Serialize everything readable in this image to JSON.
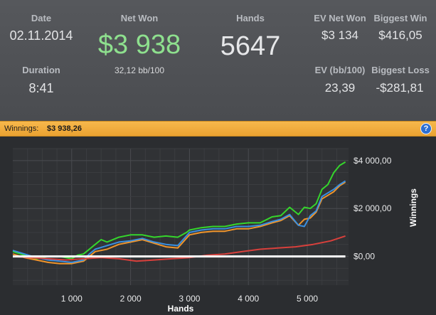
{
  "stats": {
    "date_label": "Date",
    "date_value": "02.11.2014",
    "net_won_label": "Net Won",
    "net_won_value": "$3 938",
    "net_won_sub": "32,12 bb/100",
    "hands_label": "Hands",
    "hands_value": "5647",
    "ev_net_won_label": "EV Net Won",
    "ev_net_won_value": "$3 134",
    "biggest_win_label": "Biggest Win",
    "biggest_win_value": "$416,05",
    "duration_label": "Duration",
    "duration_value": "8:41",
    "ev_bb_label": "EV (bb/100)",
    "ev_bb_value": "23,39",
    "biggest_loss_label": "Biggest Loss",
    "biggest_loss_value": "-$281,81"
  },
  "banner": {
    "label": "Winnings:",
    "value": "$3 938,26",
    "help_glyph": "?"
  },
  "colors": {
    "net_won": "#8ee08e",
    "banner": "#f0ad3c",
    "green_series": "#35d62c",
    "orange_series": "#f0952c",
    "blue_series": "#3a8fe0",
    "red_series": "#d9403c",
    "zero_line": "#ffffff"
  },
  "chart_data": {
    "type": "line",
    "xlabel": "Hands",
    "ylabel": "Winnings",
    "xlim": [
      0,
      5700
    ],
    "ylim": [
      -1200,
      4500
    ],
    "x_ticks": [
      1000,
      2000,
      3000,
      4000,
      5000
    ],
    "x_tick_labels": [
      "1 000",
      "2 000",
      "3 000",
      "4 000",
      "5 000"
    ],
    "y_ticks": [
      0,
      2000,
      4000
    ],
    "y_tick_labels": [
      "$0,00",
      "$2 000,00",
      "$4 000,00"
    ],
    "grid": true,
    "series": [
      {
        "color": "#35d62c",
        "x": [
          0,
          200,
          400,
          600,
          800,
          1000,
          1100,
          1200,
          1300,
          1400,
          1500,
          1600,
          1800,
          2000,
          2200,
          2400,
          2600,
          2800,
          2950,
          3000,
          3200,
          3400,
          3600,
          3800,
          4000,
          4200,
          4400,
          4550,
          4700,
          4850,
          4950,
          5050,
          5150,
          5250,
          5350,
          5450,
          5550,
          5647
        ],
        "values": [
          200,
          50,
          -100,
          0,
          0,
          -100,
          50,
          100,
          300,
          500,
          700,
          600,
          800,
          900,
          900,
          800,
          850,
          800,
          1000,
          1100,
          1200,
          1250,
          1250,
          1350,
          1400,
          1400,
          1650,
          1700,
          2050,
          1750,
          2050,
          2000,
          2200,
          2800,
          3000,
          3500,
          3800,
          3938
        ]
      },
      {
        "color": "#f0952c",
        "x": [
          0,
          200,
          400,
          600,
          800,
          1000,
          1200,
          1300,
          1400,
          1600,
          1800,
          2000,
          2200,
          2400,
          2600,
          2800,
          3000,
          3200,
          3400,
          3600,
          3800,
          4000,
          4200,
          4400,
          4550,
          4700,
          4850,
          4950,
          5050,
          5150,
          5250,
          5350,
          5450,
          5550,
          5647
        ],
        "values": [
          100,
          -50,
          -150,
          -250,
          -300,
          -300,
          -200,
          0,
          200,
          300,
          500,
          600,
          700,
          550,
          400,
          350,
          900,
          1000,
          1050,
          1050,
          1150,
          1150,
          1250,
          1400,
          1500,
          1700,
          1300,
          1550,
          1600,
          1850,
          2400,
          2550,
          2700,
          2950,
          3100
        ]
      },
      {
        "color": "#3a8fe0",
        "x": [
          0,
          200,
          400,
          600,
          800,
          1000,
          1200,
          1300,
          1400,
          1600,
          1800,
          2000,
          2200,
          2400,
          2600,
          2800,
          3000,
          3200,
          3400,
          3600,
          3800,
          4000,
          4200,
          4400,
          4550,
          4700,
          4850,
          4950,
          5050,
          5150,
          5250,
          5350,
          5450,
          5550,
          5647
        ],
        "values": [
          250,
          100,
          -50,
          -150,
          -200,
          -250,
          -150,
          100,
          300,
          450,
          600,
          650,
          750,
          600,
          500,
          450,
          1000,
          1100,
          1150,
          1150,
          1250,
          1250,
          1300,
          1450,
          1550,
          1750,
          1300,
          1250,
          1700,
          1900,
          2500,
          2650,
          2800,
          3000,
          3150
        ]
      },
      {
        "color": "#d9403c",
        "x": [
          0,
          300,
          600,
          900,
          1200,
          1500,
          1800,
          2100,
          2400,
          2700,
          3000,
          3300,
          3600,
          3900,
          4200,
          4500,
          4800,
          5100,
          5400,
          5647
        ],
        "values": [
          0,
          -50,
          -100,
          -150,
          -100,
          -50,
          -100,
          -200,
          -150,
          -100,
          -50,
          50,
          100,
          200,
          300,
          350,
          400,
          500,
          650,
          850
        ]
      },
      {
        "color": "#ffffff",
        "x": [
          0,
          5647
        ],
        "values": [
          0,
          0
        ]
      }
    ]
  }
}
